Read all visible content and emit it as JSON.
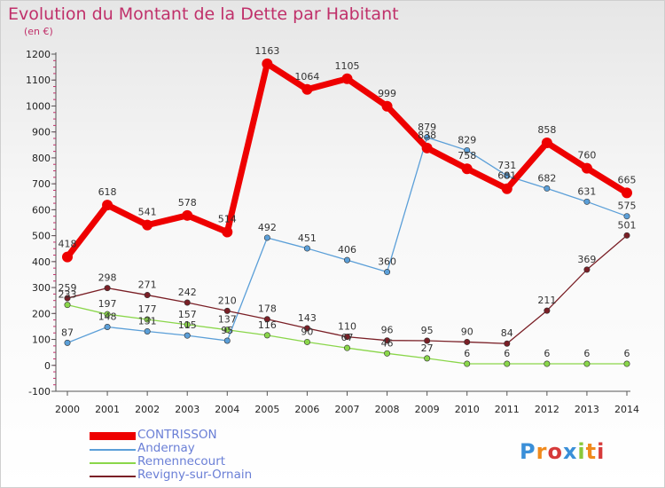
{
  "title": "Evolution du Montant de la Dette par Habitant",
  "unit": "(en €)",
  "logo": "Proxiti",
  "chart_data": {
    "type": "line",
    "x": [
      "2000",
      "2001",
      "2002",
      "2003",
      "2004",
      "2005",
      "2006",
      "2007",
      "2008",
      "2009",
      "2010",
      "2011",
      "2012",
      "2013",
      "2014"
    ],
    "ylim": [
      -100,
      1200
    ],
    "yticks": [
      -100,
      0,
      100,
      200,
      300,
      400,
      500,
      600,
      700,
      800,
      900,
      1000,
      1100,
      1200
    ],
    "grid": false,
    "legend_position": "bottom-left",
    "series": [
      {
        "name": "Remennecourt",
        "color": "#8ad64a",
        "values": [
          233,
          197,
          177,
          157,
          137,
          116,
          90,
          67,
          46,
          27,
          6,
          6,
          6,
          6,
          6
        ],
        "labels": [
          "233",
          "197",
          "177",
          "157",
          "137",
          "116",
          "90",
          "67",
          "46",
          "27",
          "6",
          "6",
          "6",
          "6",
          "6"
        ]
      },
      {
        "name": "Andernay",
        "color": "#5b9fd8",
        "values": [
          87,
          148,
          131,
          115,
          95,
          492,
          451,
          406,
          360,
          879,
          829,
          731,
          682,
          631,
          575
        ],
        "labels": [
          "87",
          "148",
          "131",
          "115",
          "95",
          "492",
          "451",
          "406",
          "360",
          "879",
          "829",
          "731",
          "682",
          "631",
          "575"
        ]
      },
      {
        "name": "Revigny-sur-Ornain",
        "color": "#7a1f26",
        "values": [
          259,
          298,
          271,
          242,
          210,
          178,
          143,
          110,
          96,
          95,
          90,
          84,
          211,
          369,
          501
        ],
        "labels": [
          "259",
          "298",
          "271",
          "242",
          "210",
          "178",
          "143",
          "110",
          "96",
          "95",
          "90",
          "84",
          "211",
          "369",
          "501"
        ]
      },
      {
        "name": "CONTRISSON",
        "color": "#ee0000",
        "values": [
          418,
          618,
          541,
          578,
          514,
          1163,
          1064,
          1105,
          999,
          838,
          758,
          681,
          858,
          760,
          665
        ],
        "labels": [
          "418",
          "618",
          "541",
          "578",
          "514",
          "1163",
          "1064",
          "1105",
          "999",
          "838",
          "758",
          "681",
          "858",
          "760",
          "665"
        ]
      }
    ]
  },
  "legend": [
    {
      "name": "CONTRISSON",
      "color": "#ee0000"
    },
    {
      "name": "Andernay",
      "color": "#5b9fd8"
    },
    {
      "name": "Remennecourt",
      "color": "#8ad64a"
    },
    {
      "name": "Revigny-sur-Ornain",
      "color": "#7a1f26"
    }
  ]
}
